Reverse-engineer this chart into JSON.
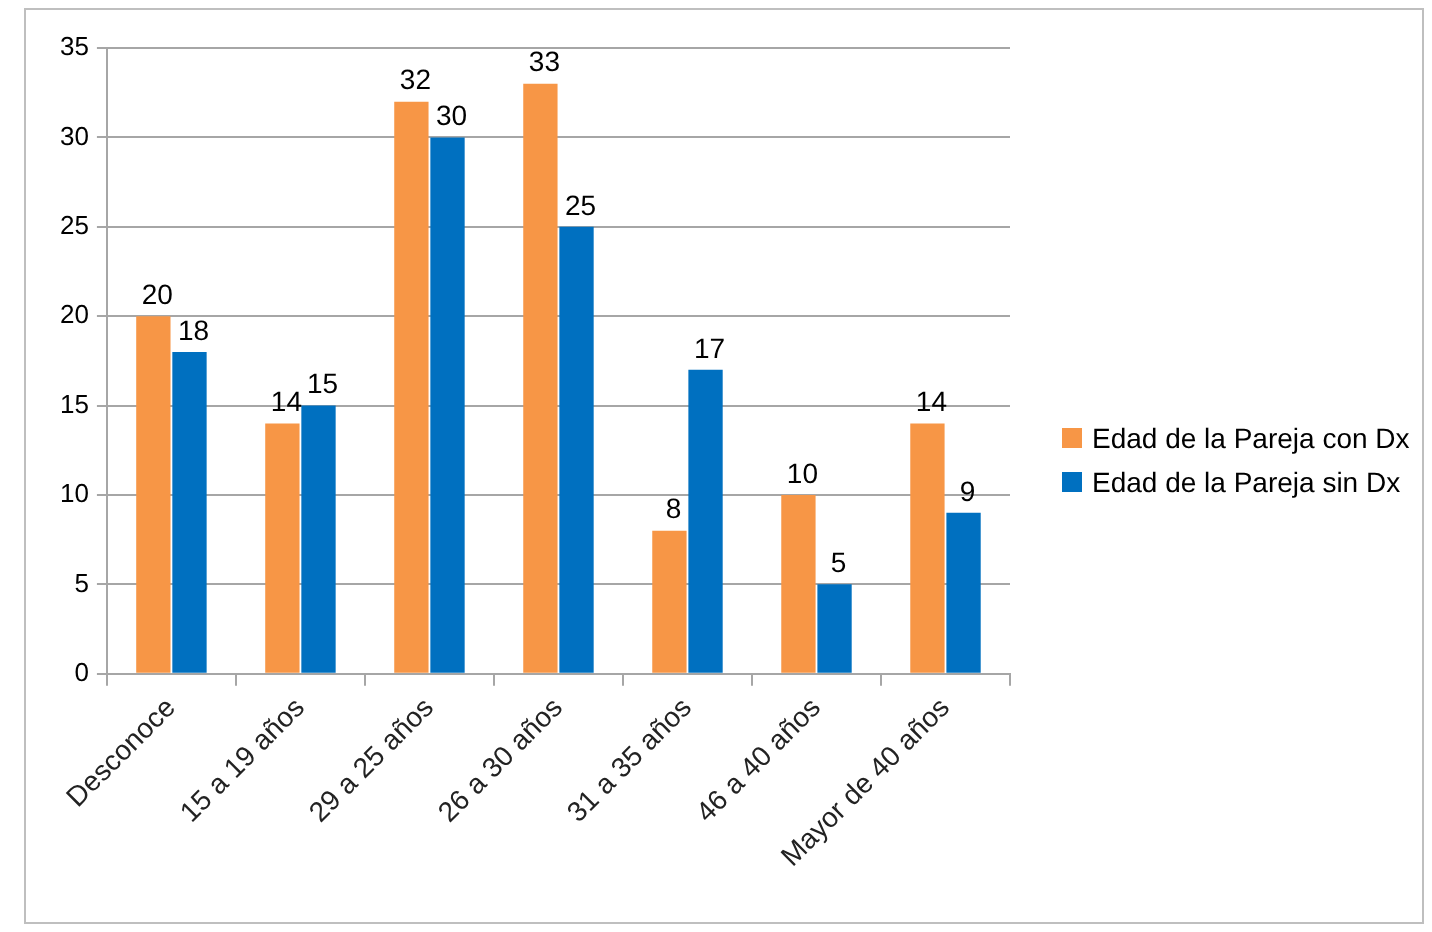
{
  "chart_data": {
    "type": "bar",
    "categories": [
      "Desconoce",
      "15 a 19 años",
      "29 a 25 años",
      "26 a 30 años",
      "31 a 35 años",
      "46 a 40 años",
      "Mayor de 40 años"
    ],
    "series": [
      {
        "name": "Edad de la Pareja con Dx",
        "color": "#f79646",
        "values": [
          20,
          14,
          32,
          33,
          8,
          10,
          14
        ]
      },
      {
        "name": "Edad de la Pareja sin Dx",
        "color": "#0070c0",
        "values": [
          18,
          15,
          30,
          25,
          17,
          5,
          9
        ]
      }
    ],
    "ylim": [
      0,
      35
    ],
    "yticks": [
      0,
      5,
      10,
      15,
      20,
      25,
      30,
      35
    ],
    "grid": "y",
    "legend": "right",
    "data_labels": true
  }
}
